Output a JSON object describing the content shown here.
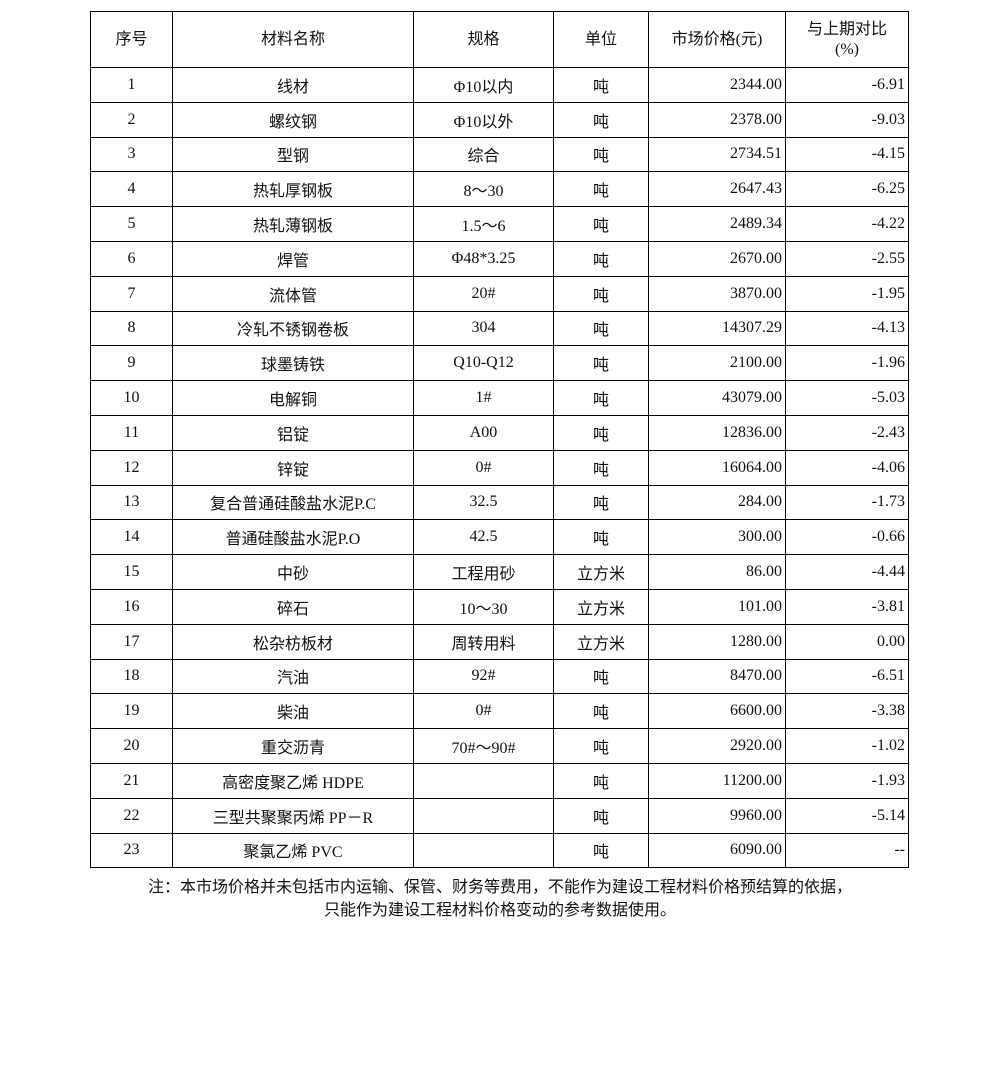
{
  "headers": [
    "序号",
    "材料名称",
    "规格",
    "单位",
    "市场价格(元)",
    "与上期对比\n(%)"
  ],
  "rows": [
    [
      "1",
      "线材",
      "Φ10以内",
      "吨",
      "2344.00",
      "-6.91"
    ],
    [
      "2",
      "螺纹钢",
      "Φ10以外",
      "吨",
      "2378.00",
      "-9.03"
    ],
    [
      "3",
      "型钢",
      "综合",
      "吨",
      "2734.51",
      "-4.15"
    ],
    [
      "4",
      "热轧厚钢板",
      "8～30",
      "吨",
      "2647.43",
      "-6.25"
    ],
    [
      "5",
      "热轧薄钢板",
      "1.5～6",
      "吨",
      "2489.34",
      "-4.22"
    ],
    [
      "6",
      "焊管",
      "Φ48*3.25",
      "吨",
      "2670.00",
      "-2.55"
    ],
    [
      "7",
      "流体管",
      "20#",
      "吨",
      "3870.00",
      "-1.95"
    ],
    [
      "8",
      "冷轧不锈钢卷板",
      "304",
      "吨",
      "14307.29",
      "-4.13"
    ],
    [
      "9",
      "球墨铸铁",
      "Q10-Q12",
      "吨",
      "2100.00",
      "-1.96"
    ],
    [
      "10",
      "电解铜",
      "1#",
      "吨",
      "43079.00",
      "-5.03"
    ],
    [
      "11",
      "铝锭",
      "A00",
      "吨",
      "12836.00",
      "-2.43"
    ],
    [
      "12",
      "锌锭",
      "0#",
      "吨",
      "16064.00",
      "-4.06"
    ],
    [
      "13",
      "复合普通硅酸盐水泥P.C",
      "32.5",
      "吨",
      "284.00",
      "-1.73"
    ],
    [
      "14",
      "普通硅酸盐水泥P.O",
      "42.5",
      "吨",
      "300.00",
      "-0.66"
    ],
    [
      "15",
      "中砂",
      "工程用砂",
      "立方米",
      "86.00",
      "-4.44"
    ],
    [
      "16",
      "碎石",
      "10～30",
      "立方米",
      "101.00",
      "-3.81"
    ],
    [
      "17",
      "松杂枋板材",
      "周转用料",
      "立方米",
      "1280.00",
      "0.00"
    ],
    [
      "18",
      "汽油",
      "92#",
      "吨",
      "8470.00",
      "-6.51"
    ],
    [
      "19",
      "柴油",
      "0#",
      "吨",
      "6600.00",
      "-3.38"
    ],
    [
      "20",
      "重交沥青",
      "70#～90#",
      "吨",
      "2920.00",
      "-1.02"
    ],
    [
      "21",
      "高密度聚乙烯 HDPE",
      "",
      "吨",
      "11200.00",
      "-1.93"
    ],
    [
      "22",
      "三型共聚聚丙烯 PP－R",
      "",
      "吨",
      "9960.00",
      "-5.14"
    ],
    [
      "23",
      "聚氯乙烯 PVC",
      "",
      "吨",
      "6090.00",
      "--"
    ]
  ],
  "note": {
    "line1": "注：本市场价格并未包括市内运输、保管、财务等费用，不能作为建设工程材料价格预结算的依据，",
    "line2": "只能作为建设工程材料价格变动的参考数据使用。"
  }
}
